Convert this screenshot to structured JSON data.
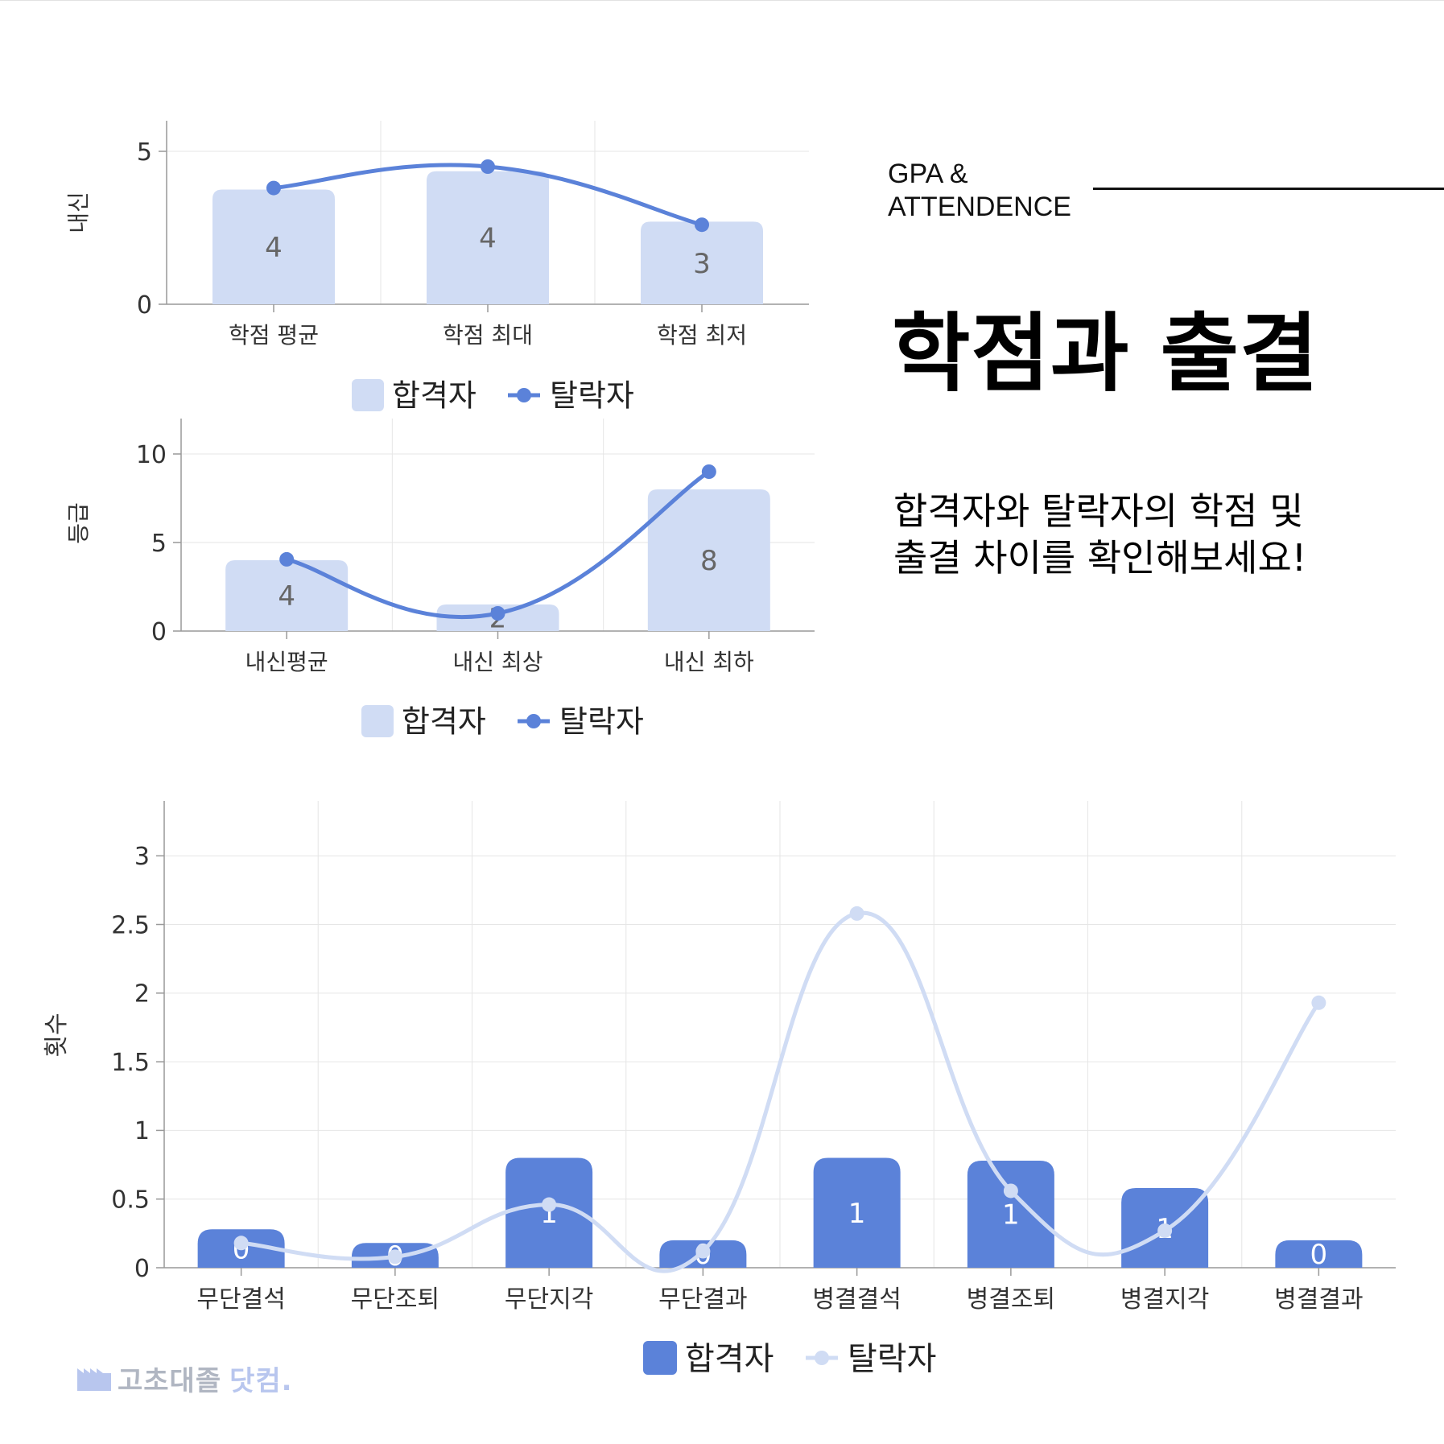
{
  "header": {
    "eyebrow_line1": "GPA &",
    "eyebrow_line2": "ATTENDENCE",
    "title": "학점과 출결",
    "subtitle_line1": "합격자와 탈락자의 학점 및",
    "subtitle_line2": "출결 차이를 확인해보세요!"
  },
  "brand": {
    "name": "고초대졸",
    "name_accent": "닷컴."
  },
  "colors": {
    "pass_bar_light": "#d0dcf4",
    "fail_line_dark": "#5b82d9",
    "pass_bar_dark": "#5b82d9",
    "fail_line_light": "#d0dcf4"
  },
  "chart_data": [
    {
      "type": "bar",
      "ylabel": "내신",
      "ylim": [
        0,
        6
      ],
      "yticks": [
        0,
        5
      ],
      "categories": [
        "학점 평균",
        "학점 최대",
        "학점 최저"
      ],
      "series": [
        {
          "name": "합격자",
          "type": "bar",
          "values": [
            3.75,
            4.35,
            2.7
          ],
          "labels": [
            "4",
            "4",
            "3"
          ]
        },
        {
          "name": "탈락자",
          "type": "line",
          "values": [
            3.8,
            4.5,
            2.6
          ]
        }
      ],
      "legend": "bottom"
    },
    {
      "type": "bar",
      "ylabel": "등급",
      "ylim": [
        0,
        12
      ],
      "yticks": [
        0,
        5,
        10
      ],
      "categories": [
        "내신평균",
        "내신 최상",
        "내신 최하"
      ],
      "series": [
        {
          "name": "합격자",
          "type": "bar",
          "values": [
            4,
            1.5,
            8
          ],
          "labels": [
            "4",
            "2",
            "8"
          ]
        },
        {
          "name": "탈락자",
          "type": "line",
          "values": [
            4.05,
            1,
            9
          ]
        }
      ],
      "legend": "bottom"
    },
    {
      "type": "bar",
      "ylabel": "횟수",
      "ylim": [
        0,
        3.4
      ],
      "yticks": [
        0,
        0.5,
        1,
        1.5,
        2,
        2.5,
        3
      ],
      "categories": [
        "무단결석",
        "무단조퇴",
        "무단지각",
        "무단결과",
        "병결결석",
        "병결조퇴",
        "병결지각",
        "병결결과"
      ],
      "series": [
        {
          "name": "합격자",
          "type": "bar",
          "values": [
            0.28,
            0.18,
            0.8,
            0.2,
            0.8,
            0.78,
            0.58,
            0.2
          ],
          "labels": [
            "0",
            "0",
            "1",
            "0",
            "1",
            "1",
            "1",
            "0"
          ]
        },
        {
          "name": "탈락자",
          "type": "line",
          "values": [
            0.18,
            0.08,
            0.46,
            0.12,
            2.58,
            0.56,
            0.27,
            1.93
          ]
        }
      ],
      "legend": "bottom"
    }
  ]
}
